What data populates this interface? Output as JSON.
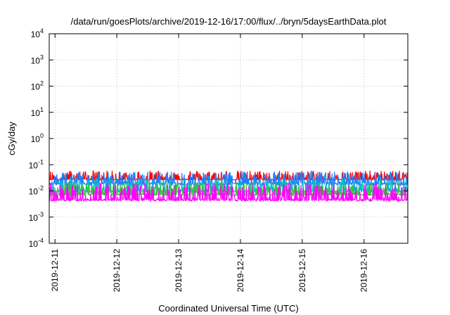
{
  "chart_data": {
    "type": "line",
    "title": "/data/run/goesPlots/archive/2019-12-16/17:00/flux/../bryn/5daysEarthData.plot",
    "xlabel": "Coordinated Universal Time (UTC)",
    "ylabel": "cGy/day",
    "yscale": "log",
    "ylim": [
      0.0001,
      10000
    ],
    "xlim": [
      "2019-12-10T21:45",
      "2019-12-16T17:00"
    ],
    "grid": true,
    "legend": "none",
    "y_ticks": [
      {
        "value": 0.0001,
        "mantissa": "10",
        "exp": "-4"
      },
      {
        "value": 0.001,
        "mantissa": "10",
        "exp": "-3"
      },
      {
        "value": 0.01,
        "mantissa": "10",
        "exp": "-2"
      },
      {
        "value": 0.1,
        "mantissa": "10",
        "exp": "-1"
      },
      {
        "value": 1,
        "mantissa": "10",
        "exp": "0"
      },
      {
        "value": 10,
        "mantissa": "10",
        "exp": "1"
      },
      {
        "value": 100,
        "mantissa": "10",
        "exp": "2"
      },
      {
        "value": 1000,
        "mantissa": "10",
        "exp": "3"
      },
      {
        "value": 10000,
        "mantissa": "10",
        "exp": "4"
      }
    ],
    "x_ticks": [
      "2019-12-11",
      "2019-12-12",
      "2019-12-13",
      "2019-12-14",
      "2019-12-15",
      "2019-12-16"
    ],
    "gap": [
      "2019-12-13T21:00",
      "2019-12-13T22:00"
    ],
    "series": [
      {
        "color": "#ff0000",
        "base": 0.028,
        "min": 0.024,
        "max": 0.06
      },
      {
        "color": "#1e7fff",
        "base": 0.02,
        "min": 0.013,
        "max": 0.055
      },
      {
        "color": "#00c0c0",
        "base": 0.01,
        "min": 0.008,
        "max": 0.03
      },
      {
        "color": "#40c040",
        "base": 0.0075,
        "min": 0.006,
        "max": 0.02
      },
      {
        "color": "#ff00ff",
        "base": 0.0048,
        "min": 0.0035,
        "max": 0.02
      }
    ]
  }
}
